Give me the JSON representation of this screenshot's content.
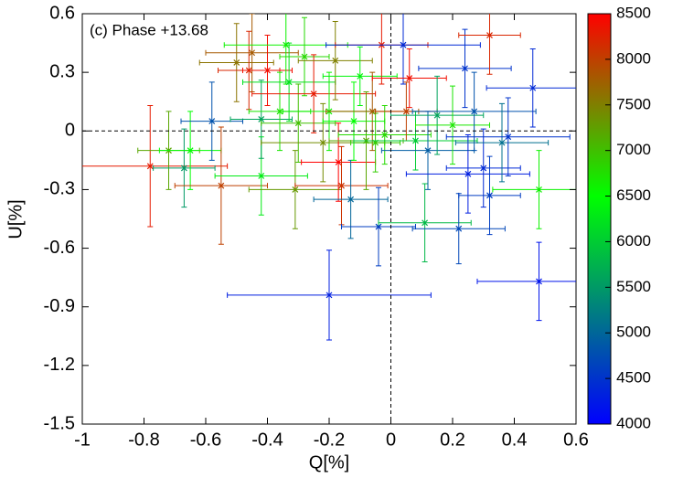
{
  "chart_data": {
    "type": "errorbar-scatter",
    "annotation": "(c) Phase +13.68",
    "xlabel": "Q[%]",
    "ylabel": "U[%]",
    "xlim": [
      -1,
      0.6
    ],
    "xticks": [
      -1,
      -0.8,
      -0.6,
      -0.4,
      -0.2,
      0,
      0.2,
      0.4,
      0.6
    ],
    "ylim": [
      -1.5,
      0.6
    ],
    "yticks": [
      -1.5,
      -1.2,
      -0.9,
      -0.6,
      -0.3,
      0,
      0.3,
      0.6
    ],
    "zero_lines": true,
    "colorbar": {
      "lim": [
        4000,
        8500
      ],
      "ticks": [
        4000,
        4500,
        5000,
        5500,
        6000,
        6500,
        7000,
        7500,
        8000,
        8500
      ],
      "colormap": [
        [
          4000,
          "#0000ff"
        ],
        [
          6500,
          "#00ff00"
        ],
        [
          8500,
          "#ff0000"
        ]
      ]
    },
    "series": [
      {
        "x": [
          -0.78,
          -0.72,
          -0.67,
          -0.65,
          -0.58,
          -0.55,
          -0.5,
          -0.46,
          -0.45,
          -0.42,
          -0.42,
          -0.4,
          -0.36,
          -0.34,
          -0.33,
          -0.31,
          -0.3,
          -0.28,
          -0.25,
          -0.22,
          -0.2,
          -0.2,
          -0.18,
          -0.17,
          -0.16,
          -0.13,
          -0.12,
          -0.1,
          -0.08,
          -0.06,
          -0.05,
          -0.03,
          -0.02,
          -0.04,
          0.04,
          0.05,
          0.06,
          0.08,
          0.11,
          0.12,
          0.15,
          0.2,
          0.22,
          0.24,
          0.25,
          0.27,
          0.3,
          0.32,
          0.32,
          0.36,
          0.38,
          0.46,
          0.48,
          0.48
        ],
        "y": [
          -0.18,
          -0.1,
          -0.19,
          -0.1,
          0.05,
          -0.28,
          0.35,
          0.31,
          0.4,
          -0.23,
          0.06,
          0.31,
          0.1,
          0.44,
          0.25,
          -0.3,
          0.04,
          0.38,
          0.19,
          -0.06,
          -0.84,
          0.1,
          0.36,
          -0.16,
          -0.28,
          -0.35,
          0.05,
          0.28,
          -0.05,
          0.1,
          -0.06,
          0.44,
          -0.02,
          -0.49,
          0.44,
          0.1,
          0.27,
          -0.05,
          -0.47,
          -0.1,
          0.08,
          0.03,
          -0.5,
          0.32,
          -0.22,
          0.1,
          -0.19,
          0.49,
          -0.33,
          -0.06,
          -0.03,
          0.22,
          -0.3,
          -0.77
        ],
        "xerr": [
          0.25,
          0.1,
          0.1,
          0.1,
          0.1,
          0.15,
          0.12,
          0.1,
          0.15,
          0.15,
          0.1,
          0.08,
          0.1,
          0.2,
          0.15,
          0.15,
          0.12,
          0.08,
          0.2,
          0.2,
          0.33,
          0.15,
          0.12,
          0.12,
          0.15,
          0.12,
          0.1,
          0.12,
          0.12,
          0.15,
          0.08,
          0.15,
          0.15,
          0.12,
          0.25,
          0.1,
          0.12,
          0.2,
          0.15,
          0.15,
          0.15,
          0.12,
          0.15,
          0.15,
          0.2,
          0.2,
          0.12,
          0.1,
          0.1,
          0.15,
          0.2,
          0.15,
          0.15,
          0.2
        ],
        "yerr": [
          0.31,
          0.2,
          0.2,
          0.2,
          0.2,
          0.3,
          0.2,
          0.2,
          0.2,
          0.2,
          0.2,
          0.18,
          0.2,
          0.2,
          0.2,
          0.2,
          0.2,
          0.2,
          0.2,
          0.2,
          0.23,
          0.2,
          0.2,
          0.2,
          0.2,
          0.2,
          0.2,
          0.15,
          0.25,
          0.2,
          0.15,
          0.2,
          0.15,
          0.2,
          0.2,
          0.15,
          0.15,
          0.15,
          0.2,
          0.2,
          0.2,
          0.2,
          0.18,
          0.2,
          0.2,
          0.2,
          0.2,
          0.2,
          0.2,
          0.2,
          0.2,
          0.2,
          0.2,
          0.2
        ],
        "z": [
          8300,
          7200,
          5500,
          6500,
          4800,
          8000,
          7600,
          8200,
          7800,
          6300,
          5600,
          8400,
          6700,
          6600,
          6200,
          7300,
          7000,
          6800,
          8300,
          7400,
          4300,
          6600,
          7500,
          8500,
          8100,
          5000,
          6500,
          6400,
          7200,
          7800,
          6900,
          8300,
          6800,
          4600,
          4400,
          8000,
          8400,
          6000,
          5800,
          4900,
          5600,
          6700,
          4700,
          4500,
          4300,
          4800,
          4400,
          8200,
          4600,
          5100,
          4500,
          4400,
          6600,
          4200
        ]
      }
    ]
  }
}
